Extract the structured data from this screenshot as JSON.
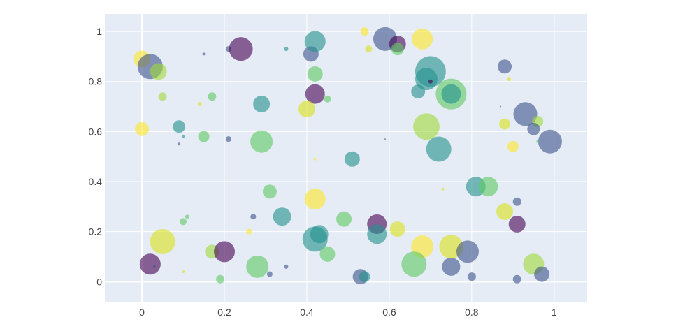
{
  "chart_data": {
    "type": "scatter",
    "title": "",
    "xlabel": "",
    "ylabel": "",
    "xlim": [
      -0.09,
      1.08
    ],
    "ylim": [
      -0.08,
      1.07
    ],
    "grid": true,
    "x_ticks": [
      0,
      0.2,
      0.4,
      0.6,
      0.8,
      1
    ],
    "x_tick_labels": [
      "0",
      "0.2",
      "0.4",
      "0.6",
      "0.8",
      "1"
    ],
    "y_ticks": [
      0,
      0.2,
      0.4,
      0.6,
      0.8,
      1
    ],
    "y_tick_labels": [
      "0",
      "0.2",
      "0.4",
      "0.6",
      "0.8",
      "1"
    ],
    "colors": {
      "plot_bg": "#e5ecf6",
      "grid": "#ffffff",
      "purple": "#440154",
      "indigo": "#3b528b",
      "teal": "#21918c",
      "green": "#5ec962",
      "yellow": "#fde725"
    },
    "marker_opacity": 0.6,
    "points": [
      {
        "x": 0.0,
        "y": 0.89,
        "size": 12,
        "color": "#fde725"
      },
      {
        "x": 0.02,
        "y": 0.86,
        "size": 18,
        "color": "#3b528b"
      },
      {
        "x": 0.04,
        "y": 0.84,
        "size": 12,
        "color": "#a0da39"
      },
      {
        "x": 0.05,
        "y": 0.74,
        "size": 6,
        "color": "#a0da39"
      },
      {
        "x": 0.0,
        "y": 0.61,
        "size": 10,
        "color": "#fde725"
      },
      {
        "x": 0.09,
        "y": 0.62,
        "size": 9,
        "color": "#21918c"
      },
      {
        "x": 0.09,
        "y": 0.55,
        "size": 2,
        "color": "#3b528b"
      },
      {
        "x": 0.1,
        "y": 0.58,
        "size": 2,
        "color": "#21918c"
      },
      {
        "x": 0.14,
        "y": 0.71,
        "size": 3,
        "color": "#d8e219"
      },
      {
        "x": 0.15,
        "y": 0.91,
        "size": 2,
        "color": "#3b528b"
      },
      {
        "x": 0.17,
        "y": 0.74,
        "size": 6,
        "color": "#5ec962"
      },
      {
        "x": 0.15,
        "y": 0.58,
        "size": 8,
        "color": "#5ec962"
      },
      {
        "x": 0.21,
        "y": 0.93,
        "size": 4,
        "color": "#3b528b"
      },
      {
        "x": 0.24,
        "y": 0.93,
        "size": 17,
        "color": "#440154"
      },
      {
        "x": 0.21,
        "y": 0.57,
        "size": 4,
        "color": "#3b528b"
      },
      {
        "x": 0.29,
        "y": 0.71,
        "size": 12,
        "color": "#21918c"
      },
      {
        "x": 0.29,
        "y": 0.56,
        "size": 16,
        "color": "#5ec962"
      },
      {
        "x": 0.35,
        "y": 0.93,
        "size": 3,
        "color": "#21918c"
      },
      {
        "x": 0.41,
        "y": 0.91,
        "size": 11,
        "color": "#3b528b"
      },
      {
        "x": 0.42,
        "y": 0.96,
        "size": 15,
        "color": "#21918c"
      },
      {
        "x": 0.42,
        "y": 0.83,
        "size": 11,
        "color": "#5ec962"
      },
      {
        "x": 0.42,
        "y": 0.75,
        "size": 14,
        "color": "#440154"
      },
      {
        "x": 0.45,
        "y": 0.73,
        "size": 5,
        "color": "#5ec962"
      },
      {
        "x": 0.4,
        "y": 0.69,
        "size": 12,
        "color": "#d8e219"
      },
      {
        "x": 0.42,
        "y": 0.49,
        "size": 2,
        "color": "#fde725"
      },
      {
        "x": 0.54,
        "y": 1.0,
        "size": 6,
        "color": "#fde725"
      },
      {
        "x": 0.59,
        "y": 0.97,
        "size": 17,
        "color": "#3b528b"
      },
      {
        "x": 0.62,
        "y": 0.95,
        "size": 12,
        "color": "#440154"
      },
      {
        "x": 0.62,
        "y": 0.93,
        "size": 9,
        "color": "#5ec962"
      },
      {
        "x": 0.55,
        "y": 0.93,
        "size": 5,
        "color": "#d8e219"
      },
      {
        "x": 0.68,
        "y": 0.97,
        "size": 15,
        "color": "#fde725"
      },
      {
        "x": 0.7,
        "y": 0.84,
        "size": 22,
        "color": "#21918c"
      },
      {
        "x": 0.69,
        "y": 0.81,
        "size": 16,
        "color": "#21918c"
      },
      {
        "x": 0.7,
        "y": 0.8,
        "size": 3,
        "color": "#440154"
      },
      {
        "x": 0.67,
        "y": 0.76,
        "size": 10,
        "color": "#21918c"
      },
      {
        "x": 0.75,
        "y": 0.75,
        "size": 22,
        "color": "#5ec962"
      },
      {
        "x": 0.75,
        "y": 0.75,
        "size": 14,
        "color": "#21918c"
      },
      {
        "x": 0.69,
        "y": 0.62,
        "size": 19,
        "color": "#a0da39"
      },
      {
        "x": 0.72,
        "y": 0.53,
        "size": 18,
        "color": "#21918c"
      },
      {
        "x": 0.59,
        "y": 0.57,
        "size": 1,
        "color": "#3b528b"
      },
      {
        "x": 0.51,
        "y": 0.49,
        "size": 11,
        "color": "#21918c"
      },
      {
        "x": 0.88,
        "y": 0.86,
        "size": 10,
        "color": "#3b528b"
      },
      {
        "x": 0.89,
        "y": 0.81,
        "size": 3,
        "color": "#d8e219"
      },
      {
        "x": 0.87,
        "y": 0.7,
        "size": 1,
        "color": "#3b528b"
      },
      {
        "x": 0.93,
        "y": 0.67,
        "size": 17,
        "color": "#3b528b"
      },
      {
        "x": 0.96,
        "y": 0.64,
        "size": 8,
        "color": "#a0da39"
      },
      {
        "x": 0.88,
        "y": 0.63,
        "size": 8,
        "color": "#d8e219"
      },
      {
        "x": 0.95,
        "y": 0.61,
        "size": 9,
        "color": "#3b528b"
      },
      {
        "x": 0.99,
        "y": 0.56,
        "size": 17,
        "color": "#3b528b"
      },
      {
        "x": 0.9,
        "y": 0.54,
        "size": 8,
        "color": "#fde725"
      },
      {
        "x": 0.96,
        "y": 0.56,
        "size": 2,
        "color": "#5ec962"
      },
      {
        "x": 0.31,
        "y": 0.36,
        "size": 10,
        "color": "#5ec962"
      },
      {
        "x": 0.42,
        "y": 0.33,
        "size": 15,
        "color": "#fde725"
      },
      {
        "x": 0.34,
        "y": 0.26,
        "size": 13,
        "color": "#21918c"
      },
      {
        "x": 0.27,
        "y": 0.26,
        "size": 4,
        "color": "#3b528b"
      },
      {
        "x": 0.26,
        "y": 0.2,
        "size": 4,
        "color": "#fde725"
      },
      {
        "x": 0.42,
        "y": 0.17,
        "size": 18,
        "color": "#21918c"
      },
      {
        "x": 0.43,
        "y": 0.19,
        "size": 13,
        "color": "#21918c"
      },
      {
        "x": 0.49,
        "y": 0.25,
        "size": 11,
        "color": "#5ec962"
      },
      {
        "x": 0.45,
        "y": 0.11,
        "size": 11,
        "color": "#5ec962"
      },
      {
        "x": 0.57,
        "y": 0.23,
        "size": 14,
        "color": "#440154"
      },
      {
        "x": 0.57,
        "y": 0.19,
        "size": 14,
        "color": "#21918c"
      },
      {
        "x": 0.62,
        "y": 0.21,
        "size": 11,
        "color": "#d8e219"
      },
      {
        "x": 0.68,
        "y": 0.14,
        "size": 16,
        "color": "#fde725"
      },
      {
        "x": 0.66,
        "y": 0.07,
        "size": 18,
        "color": "#5ec962"
      },
      {
        "x": 0.73,
        "y": 0.37,
        "size": 2,
        "color": "#d8e219"
      },
      {
        "x": 0.81,
        "y": 0.38,
        "size": 14,
        "color": "#21918c"
      },
      {
        "x": 0.84,
        "y": 0.38,
        "size": 14,
        "color": "#5ec962"
      },
      {
        "x": 0.88,
        "y": 0.28,
        "size": 12,
        "color": "#d8e219"
      },
      {
        "x": 0.91,
        "y": 0.32,
        "size": 6,
        "color": "#3b528b"
      },
      {
        "x": 0.91,
        "y": 0.23,
        "size": 12,
        "color": "#440154"
      },
      {
        "x": 0.75,
        "y": 0.14,
        "size": 17,
        "color": "#d8e219"
      },
      {
        "x": 0.79,
        "y": 0.12,
        "size": 16,
        "color": "#3b528b"
      },
      {
        "x": 0.75,
        "y": 0.06,
        "size": 13,
        "color": "#3b528b"
      },
      {
        "x": 0.8,
        "y": 0.02,
        "size": 6,
        "color": "#3b528b"
      },
      {
        "x": 0.95,
        "y": 0.07,
        "size": 15,
        "color": "#a0da39"
      },
      {
        "x": 0.97,
        "y": 0.03,
        "size": 11,
        "color": "#3b528b"
      },
      {
        "x": 0.91,
        "y": 0.01,
        "size": 6,
        "color": "#3b528b"
      },
      {
        "x": 0.53,
        "y": 0.02,
        "size": 11,
        "color": "#3b528b"
      },
      {
        "x": 0.54,
        "y": 0.02,
        "size": 8,
        "color": "#21918c"
      },
      {
        "x": 0.05,
        "y": 0.16,
        "size": 18,
        "color": "#d8e219"
      },
      {
        "x": 0.02,
        "y": 0.07,
        "size": 15,
        "color": "#440154"
      },
      {
        "x": 0.03,
        "y": 0.06,
        "size": 2,
        "color": "#3b528b"
      },
      {
        "x": 0.1,
        "y": 0.04,
        "size": 2,
        "color": "#d8e219"
      },
      {
        "x": 0.1,
        "y": 0.24,
        "size": 5,
        "color": "#5ec962"
      },
      {
        "x": 0.11,
        "y": 0.26,
        "size": 3,
        "color": "#5ec962"
      },
      {
        "x": 0.17,
        "y": 0.12,
        "size": 10,
        "color": "#a0da39"
      },
      {
        "x": 0.2,
        "y": 0.12,
        "size": 15,
        "color": "#440154"
      },
      {
        "x": 0.19,
        "y": 0.01,
        "size": 6,
        "color": "#5ec962"
      },
      {
        "x": 0.28,
        "y": 0.06,
        "size": 16,
        "color": "#5ec962"
      },
      {
        "x": 0.31,
        "y": 0.03,
        "size": 4,
        "color": "#3b528b"
      },
      {
        "x": 0.35,
        "y": 0.06,
        "size": 3,
        "color": "#3b528b"
      }
    ]
  }
}
